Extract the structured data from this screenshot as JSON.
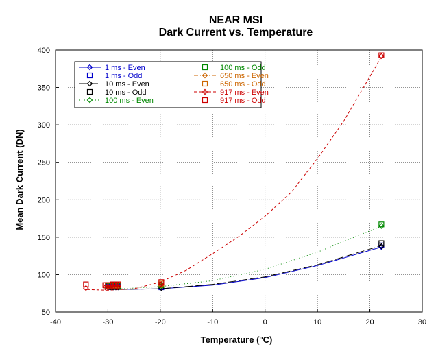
{
  "chart_data": {
    "type": "scatter",
    "title": "NEAR MSI",
    "subtitle": "Dark Current vs. Temperature",
    "xlabel": "Temperature (°C)",
    "ylabel": "Mean Dark Current (DN)",
    "xlim": [
      -40,
      30
    ],
    "ylim": [
      50,
      400
    ],
    "xticks": [
      -40,
      -30,
      -20,
      -10,
      0,
      10,
      20,
      30
    ],
    "yticks": [
      50,
      100,
      150,
      200,
      250,
      300,
      350,
      400
    ],
    "grid": true,
    "legend_position": "top-left",
    "series": [
      {
        "name": "1 ms - Even",
        "color": "#0000cc",
        "marker": "diamond",
        "line": "solid",
        "x": [
          -30.0,
          -29.5,
          -29.0,
          -28.5,
          -28.0,
          -19.8,
          22.2
        ],
        "y": [
          83,
          83,
          83,
          83,
          83,
          82,
          137
        ],
        "fit": [
          [
            -30,
            80
          ],
          [
            -20,
            81
          ],
          [
            -10,
            86
          ],
          [
            0,
            96
          ],
          [
            10,
            112
          ],
          [
            22.3,
            137
          ]
        ]
      },
      {
        "name": "1 ms - Odd",
        "color": "#0000cc",
        "marker": "square",
        "line": "none",
        "x": [
          -30.0,
          -29.5,
          -29.0,
          -28.5,
          -28.0,
          -19.8,
          22.2
        ],
        "y": [
          84,
          84,
          84,
          84,
          84,
          83,
          139
        ]
      },
      {
        "name": "10 ms - Even",
        "color": "#000000",
        "marker": "diamond",
        "line": "long-dash",
        "x": [
          -30.0,
          -29.5,
          -29.0,
          -28.5,
          -28.0,
          -19.8,
          22.2
        ],
        "y": [
          83,
          83,
          83,
          83,
          83,
          82,
          138
        ],
        "fit": [
          [
            -30,
            80
          ],
          [
            -20,
            81
          ],
          [
            -10,
            87
          ],
          [
            0,
            97
          ],
          [
            10,
            113
          ],
          [
            22.3,
            139
          ]
        ]
      },
      {
        "name": "10 ms - Odd",
        "color": "#000000",
        "marker": "square",
        "line": "none",
        "x": [
          -30.0,
          -29.5,
          -29.0,
          -28.5,
          -28.0,
          -19.8,
          22.2
        ],
        "y": [
          85,
          85,
          85,
          85,
          85,
          84,
          142
        ]
      },
      {
        "name": "100 ms - Even",
        "color": "#008800",
        "marker": "diamond",
        "line": "dotted",
        "x": [
          -30.0,
          -29.5,
          -29.0,
          -28.5,
          -28.0,
          -19.8,
          22.2
        ],
        "y": [
          84,
          84,
          84,
          84,
          84,
          85,
          165
        ],
        "fit": [
          [
            -30,
            80
          ],
          [
            -20,
            84
          ],
          [
            -10,
            92
          ],
          [
            0,
            107
          ],
          [
            10,
            130
          ],
          [
            22.3,
            165
          ]
        ]
      },
      {
        "name": "100 ms - Odd",
        "color": "#008800",
        "marker": "square",
        "line": "none",
        "x": [
          -30.0,
          -29.5,
          -29.0,
          -28.5,
          -28.0,
          -19.8,
          22.2
        ],
        "y": [
          85,
          85,
          85,
          85,
          85,
          86,
          167
        ]
      },
      {
        "name": "650 ms - Even",
        "color": "#cc6600",
        "marker": "diamond",
        "line": "dash-dot",
        "x": [
          -30.0,
          -29.5,
          -29.0,
          -28.5,
          -28.0,
          -19.8
        ],
        "y": [
          84,
          84,
          84,
          84,
          84,
          86
        ]
      },
      {
        "name": "650 ms - Odd",
        "color": "#cc6600",
        "marker": "square",
        "line": "none",
        "x": [
          -30.0,
          -29.5,
          -29.0,
          -28.5,
          -28.0,
          -19.8
        ],
        "y": [
          86,
          86,
          86,
          86,
          86,
          88
        ]
      },
      {
        "name": "917 ms - Even",
        "color": "#cc0000",
        "marker": "diamond",
        "line": "dashed",
        "x": [
          -34.2,
          -30.5,
          -30.0,
          -29.5,
          -29.0,
          -28.5,
          -28.0,
          -19.8,
          22.2
        ],
        "y": [
          82,
          83,
          83,
          84,
          84,
          84,
          84,
          87,
          392
        ],
        "fit": [
          [
            -34,
            80
          ],
          [
            -30,
            79
          ],
          [
            -25,
            81
          ],
          [
            -20,
            90
          ],
          [
            -15,
            106
          ],
          [
            -10,
            128
          ],
          [
            -5,
            151
          ],
          [
            0,
            178
          ],
          [
            5,
            210
          ],
          [
            10,
            255
          ],
          [
            15,
            305
          ],
          [
            22.3,
            392
          ]
        ]
      },
      {
        "name": "917 ms - Odd",
        "color": "#cc0000",
        "marker": "square",
        "line": "none",
        "x": [
          -34.2,
          -30.5,
          -30.0,
          -29.5,
          -29.0,
          -28.5,
          -28.0,
          -19.8,
          22.2
        ],
        "y": [
          87,
          86,
          86,
          86,
          87,
          87,
          87,
          90,
          393
        ]
      }
    ]
  }
}
